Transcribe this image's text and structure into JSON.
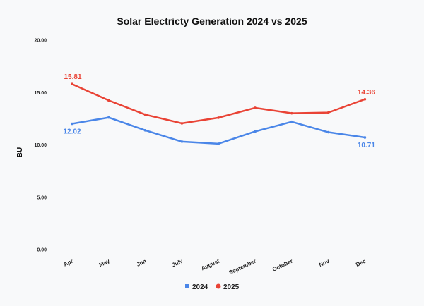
{
  "chart_data": {
    "type": "line",
    "title": "Solar Electricty Generation 2024 vs 2025",
    "xlabel": "",
    "ylabel": "BU",
    "ylim": [
      0,
      20
    ],
    "yticks": [
      "0.00",
      "5.00",
      "10.00",
      "15.00",
      "20.00"
    ],
    "grid": false,
    "legend": "bottom",
    "categories": [
      "Apr",
      "May",
      "Jun",
      "July",
      "August",
      "September",
      "October",
      "Nov",
      "Dec"
    ],
    "series": [
      {
        "name": "2024",
        "color": "#4a86e8",
        "marker": "square",
        "values": [
          12.02,
          12.62,
          11.39,
          10.31,
          10.11,
          11.28,
          12.21,
          11.21,
          10.71
        ],
        "data_labels": {
          "0": "12.02",
          "8": "10.71"
        }
      },
      {
        "name": "2025",
        "color": "#e94335",
        "marker": "circle",
        "values": [
          15.81,
          14.25,
          12.89,
          12.06,
          12.6,
          13.54,
          13.02,
          13.09,
          14.36
        ],
        "data_labels": {
          "0": "15.81",
          "8": "14.36"
        }
      }
    ]
  }
}
